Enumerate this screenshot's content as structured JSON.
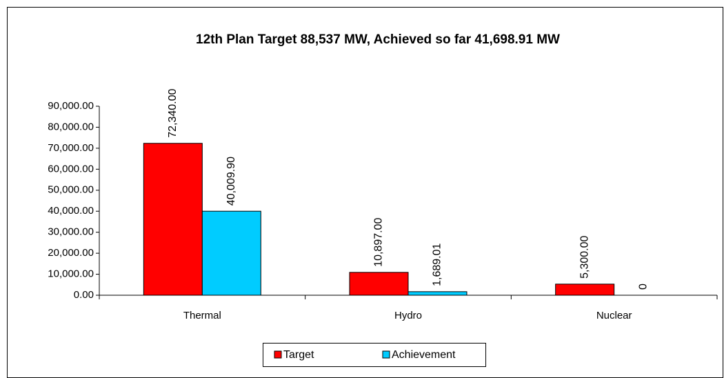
{
  "chart_data": {
    "type": "bar",
    "title": "12th Plan Target 88,537 MW, Achieved so far 41,698.91 MW",
    "categories": [
      "Thermal",
      "Hydro",
      "Nuclear"
    ],
    "series": [
      {
        "name": "Target",
        "color": "#ff0000",
        "values": [
          72340,
          10897,
          5300
        ],
        "value_labels": [
          "72,340.00",
          "10,897.00",
          "5,300.00"
        ]
      },
      {
        "name": "Achievement",
        "color": "#00ccff",
        "values": [
          40009.9,
          1689.01,
          0
        ],
        "value_labels": [
          "40,009.90",
          "1,689.01",
          "0"
        ]
      }
    ],
    "ylim": [
      0,
      90000
    ],
    "yticks": [
      {
        "value": 0,
        "label": "0.00"
      },
      {
        "value": 10000,
        "label": "10,000.00"
      },
      {
        "value": 20000,
        "label": "20,000.00"
      },
      {
        "value": 30000,
        "label": "30,000.00"
      },
      {
        "value": 40000,
        "label": "40,000.00"
      },
      {
        "value": 50000,
        "label": "50,000.00"
      },
      {
        "value": 60000,
        "label": "60,000.00"
      },
      {
        "value": 70000,
        "label": "70,000.00"
      },
      {
        "value": 80000,
        "label": "80,000.00"
      },
      {
        "value": 90000,
        "label": "90,000.00"
      }
    ],
    "legend": "bottom"
  }
}
